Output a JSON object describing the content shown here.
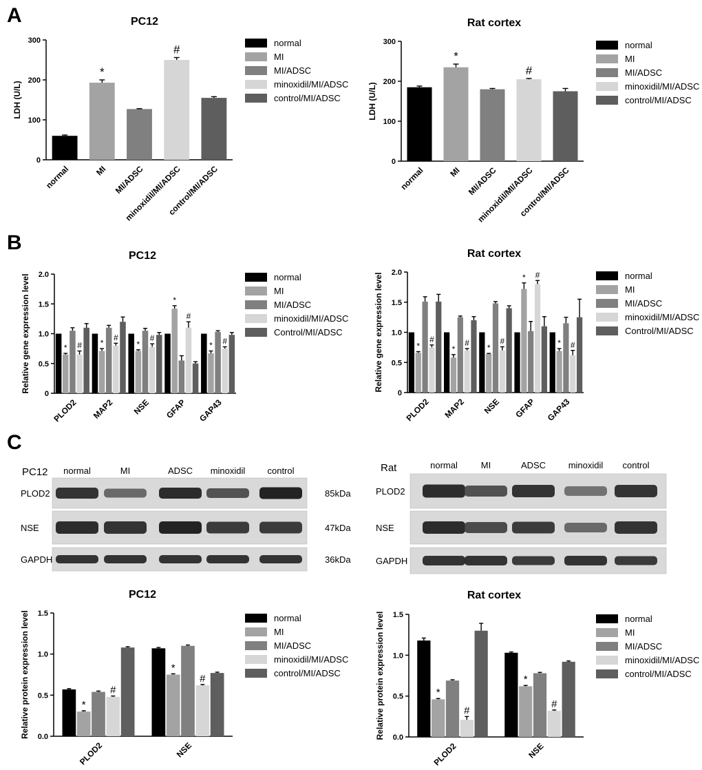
{
  "panel_labels": [
    "A",
    "B",
    "C"
  ],
  "colors": {
    "normal": "#000000",
    "MI": "#a3a3a3",
    "MI/ADSC": "#808080",
    "minoxidil/MI/ADSC": "#d6d6d6",
    "control/MI/ADSC": "#5e5e5e"
  },
  "blots": [
    {
      "title": "PC12",
      "lanes": [
        "normal",
        "MI",
        "ADSC",
        "minoxidil",
        "control"
      ],
      "rows": [
        {
          "label": "PLOD2",
          "kda": "85kDa"
        },
        {
          "label": "NSE",
          "kda": "47kDa"
        },
        {
          "label": "GAPDH",
          "kda": "36kDa"
        }
      ]
    },
    {
      "title": "Rat",
      "lanes": [
        "normal",
        "MI",
        "ADSC",
        "minoxidil",
        "control"
      ],
      "rows": [
        {
          "label": "PLOD2",
          "kda": ""
        },
        {
          "label": "NSE",
          "kda": ""
        },
        {
          "label": "GAPDH",
          "kda": ""
        }
      ]
    }
  ],
  "chart_data": [
    {
      "type": "bar",
      "title": "PC12",
      "ylabel": "LDH (U/L)",
      "ylim": [
        0,
        300
      ],
      "yticks": [
        0,
        100,
        200,
        300
      ],
      "categories": [
        "normal",
        "MI",
        "MI/ADSC",
        "minoxidil/MI/ADSC",
        "control/MI/ADSC"
      ],
      "values": [
        60,
        193,
        127,
        250,
        155
      ],
      "errors": [
        2,
        7,
        1,
        6,
        3
      ],
      "annotations": [
        "",
        "*",
        "",
        "#",
        ""
      ],
      "legend": [
        "normal",
        "MI",
        "MI/ADSC",
        "minoxidil/MI/ADSC",
        "control/MI/ADSC"
      ],
      "legend_position": "right"
    },
    {
      "type": "bar",
      "title": "Rat cortex",
      "ylabel": "LDH (U/L)",
      "ylim": [
        0,
        300
      ],
      "yticks": [
        0,
        100,
        200,
        300
      ],
      "categories": [
        "normal",
        "MI",
        "MI/ADSC",
        "minoxidil/MI/ADSC",
        "control/MI/ADSC"
      ],
      "values": [
        185,
        235,
        180,
        205,
        175
      ],
      "errors": [
        3,
        8,
        2,
        2,
        7
      ],
      "annotations": [
        "",
        "*",
        "",
        "#",
        ""
      ],
      "legend": [
        "normal",
        "MI",
        "MI/ADSC",
        "minoxidil/MI/ADSC",
        "control/MI/ADSC"
      ],
      "legend_position": "right"
    },
    {
      "type": "bar",
      "title": "PC12",
      "ylabel": "Relative gene expression level",
      "ylim": [
        0,
        2.0
      ],
      "yticks": [
        "0",
        "0.5",
        "1.0",
        "1.5",
        "2.0"
      ],
      "categories": [
        "PLOD2",
        "MAP2",
        "NSE",
        "GFAP",
        "GAP43"
      ],
      "series": [
        {
          "name": "normal",
          "values": [
            1.0,
            1.0,
            1.0,
            1.0,
            1.0
          ],
          "errors": [
            0,
            0,
            0,
            0,
            0
          ],
          "annotations": [
            "",
            "",
            "",
            "",
            ""
          ]
        },
        {
          "name": "MI",
          "values": [
            0.65,
            0.71,
            0.71,
            1.42,
            0.67
          ],
          "errors": [
            0.02,
            0.04,
            0.02,
            0.05,
            0.04
          ],
          "annotations": [
            "*",
            "*",
            "*",
            "*",
            "*"
          ]
        },
        {
          "name": "MI/ADSC",
          "values": [
            1.05,
            1.1,
            1.05,
            0.55,
            1.03
          ],
          "errors": [
            0.05,
            0.04,
            0.04,
            0.08,
            0.02
          ],
          "annotations": [
            "",
            "",
            "",
            "",
            ""
          ]
        },
        {
          "name": "minoxidil/MI/ADSC",
          "values": [
            0.65,
            0.8,
            0.78,
            1.1,
            0.75
          ],
          "errors": [
            0.06,
            0.04,
            0.05,
            0.1,
            0.03
          ],
          "annotations": [
            "#",
            "#",
            "#",
            "#",
            "#"
          ]
        },
        {
          "name": "Control/MI/ADSC",
          "values": [
            1.1,
            1.2,
            0.98,
            0.5,
            0.98
          ],
          "errors": [
            0.07,
            0.08,
            0.04,
            0.03,
            0.04
          ],
          "annotations": [
            "",
            "",
            "",
            "",
            ""
          ]
        }
      ],
      "legend_position": "right"
    },
    {
      "type": "bar",
      "title": "Rat cortex",
      "ylabel": "Relative gene expression level",
      "ylim": [
        0,
        2.0
      ],
      "yticks": [
        "0",
        "0.5",
        "1.0",
        "1.5",
        "2.0"
      ],
      "categories": [
        "PLOD2",
        "MAP2",
        "NSE",
        "GFAP",
        "GAP43"
      ],
      "series": [
        {
          "name": "normal",
          "values": [
            1.0,
            1.0,
            1.0,
            1.0,
            1.0
          ],
          "errors": [
            0,
            0,
            0,
            0,
            0
          ],
          "annotations": [
            "",
            "",
            "",
            "",
            ""
          ]
        },
        {
          "name": "MI",
          "values": [
            0.66,
            0.58,
            0.64,
            1.72,
            0.69
          ],
          "errors": [
            0.02,
            0.05,
            0.01,
            0.1,
            0.04
          ],
          "annotations": [
            "*",
            "*",
            "*",
            "*",
            "*"
          ]
        },
        {
          "name": "MI/ADSC",
          "values": [
            1.51,
            1.25,
            1.48,
            1.02,
            1.15
          ],
          "errors": [
            0.08,
            0.02,
            0.03,
            0.16,
            0.1
          ],
          "annotations": [
            "",
            "",
            "",
            "",
            ""
          ]
        },
        {
          "name": "minoxidil/MI/ADSC",
          "values": [
            0.75,
            0.7,
            0.7,
            1.8,
            0.62
          ],
          "errors": [
            0.04,
            0.03,
            0.06,
            0.06,
            0.08
          ],
          "annotations": [
            "#",
            "#",
            "#",
            "#",
            "#"
          ]
        },
        {
          "name": "Control/MI/ADSC",
          "values": [
            1.51,
            1.2,
            1.4,
            1.1,
            1.25
          ],
          "errors": [
            0.12,
            0.06,
            0.04,
            0.16,
            0.3
          ],
          "annotations": [
            "",
            "",
            "",
            "",
            ""
          ]
        }
      ],
      "legend_position": "right"
    },
    {
      "type": "bar",
      "title": "PC12",
      "ylabel": "Relative protein expression level",
      "ylim": [
        0,
        1.5
      ],
      "yticks": [
        "0.0",
        "0.5",
        "1.0",
        "1.5"
      ],
      "categories": [
        "PLOD2",
        "NSE"
      ],
      "series": [
        {
          "name": "normal",
          "values": [
            0.57,
            1.07
          ],
          "errors": [
            0.01,
            0.01
          ],
          "annotations": [
            "",
            ""
          ]
        },
        {
          "name": "MI",
          "values": [
            0.3,
            0.75
          ],
          "errors": [
            0.01,
            0.01
          ],
          "annotations": [
            "*",
            "*"
          ]
        },
        {
          "name": "MI/ADSC",
          "values": [
            0.54,
            1.1
          ],
          "errors": [
            0.01,
            0.01
          ],
          "annotations": [
            "",
            ""
          ]
        },
        {
          "name": "minoxidil/MI/ADSC",
          "values": [
            0.48,
            0.62
          ],
          "errors": [
            0.01,
            0.01
          ],
          "annotations": [
            "#",
            "#"
          ]
        },
        {
          "name": "control/MI/ADSC",
          "values": [
            1.08,
            0.77
          ],
          "errors": [
            0.01,
            0.01
          ],
          "annotations": [
            "",
            ""
          ]
        }
      ],
      "legend_position": "right"
    },
    {
      "type": "bar",
      "title": "Rat cortex",
      "ylabel": "Relative protein expression level",
      "ylim": [
        0,
        1.5
      ],
      "yticks": [
        "0.0",
        "0.5",
        "1.0",
        "1.5"
      ],
      "categories": [
        "PLOD2",
        "NSE"
      ],
      "series": [
        {
          "name": "normal",
          "values": [
            1.18,
            1.03
          ],
          "errors": [
            0.03,
            0.01
          ],
          "annotations": [
            "",
            ""
          ]
        },
        {
          "name": "MI",
          "values": [
            0.46,
            0.62
          ],
          "errors": [
            0.01,
            0.01
          ],
          "annotations": [
            "*",
            "*"
          ]
        },
        {
          "name": "MI/ADSC",
          "values": [
            0.69,
            0.78
          ],
          "errors": [
            0.01,
            0.01
          ],
          "annotations": [
            "",
            ""
          ]
        },
        {
          "name": "minoxidil/MI/ADSC",
          "values": [
            0.21,
            0.32
          ],
          "errors": [
            0.04,
            0.01
          ],
          "annotations": [
            "#",
            "#"
          ]
        },
        {
          "name": "control/MI/ADSC",
          "values": [
            1.3,
            0.92
          ],
          "errors": [
            0.09,
            0.01
          ],
          "annotations": [
            "",
            ""
          ]
        }
      ],
      "legend_position": "right"
    }
  ]
}
